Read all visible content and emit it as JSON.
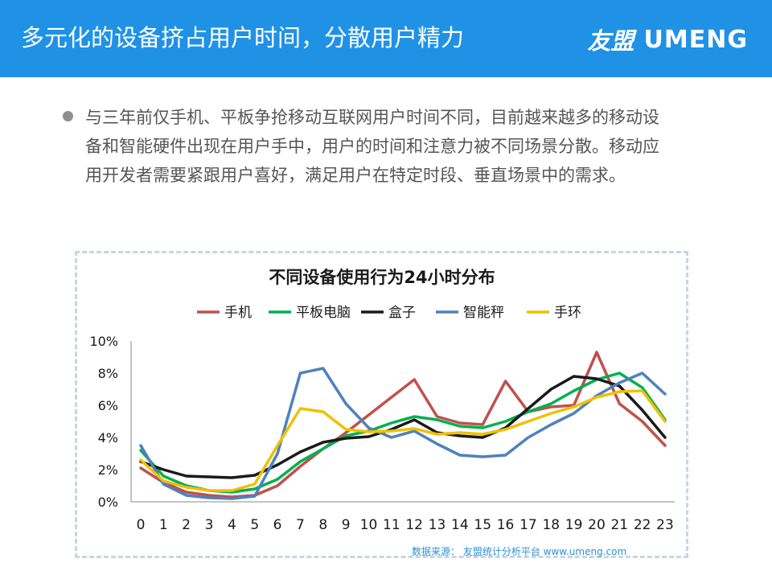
{
  "header": {
    "title": "多元化的设备挤占用户时间，分散用户精力",
    "logo_cn": "友盟",
    "logo_en": "UMENG"
  },
  "bullet": {
    "text": "与三年前仅手机、平板争抢移动互联网用户时间不同，目前越来越多的移动设备和智能硬件出现在用户手中，用户的时间和注意力被不同场景分散。移动应用开发者需要紧跟用户喜好，满足用户在特定时段、垂直场景中的需求。"
  },
  "footer": {
    "source": "数据来源： 友盟统计分析平台 www.umeng.com"
  },
  "chart_data": {
    "type": "line",
    "title": "不同设备使用行为24小时分布",
    "x": [
      0,
      1,
      2,
      3,
      4,
      5,
      6,
      7,
      8,
      9,
      10,
      11,
      12,
      13,
      14,
      15,
      16,
      17,
      18,
      19,
      20,
      21,
      22,
      23
    ],
    "x_tick_labels": [
      "0",
      "1",
      "2",
      "3",
      "4",
      "5",
      "6",
      "7",
      "8",
      "9",
      "10",
      "11",
      "12",
      "13",
      "14",
      "15",
      "16",
      "17",
      "18",
      "19",
      "20",
      "21",
      "22",
      "23"
    ],
    "ylim": [
      0,
      10
    ],
    "y_ticks": [
      0,
      2,
      4,
      6,
      8,
      10
    ],
    "y_tick_labels": [
      "0%",
      "2%",
      "4%",
      "6%",
      "8%",
      "10%"
    ],
    "legend_position": "top",
    "grid": false,
    "series": [
      {
        "name": "手机",
        "color": "#c0504d",
        "values": [
          2.1,
          1.2,
          0.6,
          0.4,
          0.3,
          0.4,
          1.0,
          2.2,
          3.3,
          4.3,
          5.4,
          6.5,
          7.6,
          5.3,
          4.9,
          4.8,
          7.5,
          5.6,
          5.9,
          6.0,
          9.3,
          6.1,
          5.0,
          3.5
        ]
      },
      {
        "name": "平板电脑",
        "color": "#00b050",
        "values": [
          3.2,
          1.6,
          1.0,
          0.7,
          0.6,
          0.8,
          1.4,
          2.5,
          3.3,
          4.1,
          4.4,
          4.9,
          5.3,
          5.1,
          4.7,
          4.6,
          5.0,
          5.6,
          6.1,
          6.9,
          7.6,
          8.0,
          7.1,
          5.1
        ]
      },
      {
        "name": "盒子",
        "color": "#1a1a1a",
        "values": [
          2.5,
          2.0,
          1.6,
          1.55,
          1.5,
          1.65,
          2.3,
          3.1,
          3.7,
          3.95,
          4.05,
          4.5,
          5.1,
          4.3,
          4.1,
          4.0,
          4.6,
          5.8,
          7.0,
          7.8,
          7.65,
          7.2,
          5.7,
          4.0
        ]
      },
      {
        "name": "智能秤",
        "color": "#4f81bd",
        "values": [
          3.5,
          1.1,
          0.4,
          0.25,
          0.2,
          0.35,
          3.0,
          8.0,
          8.3,
          6.1,
          4.6,
          4.0,
          4.4,
          3.6,
          2.9,
          2.8,
          2.9,
          4.0,
          4.8,
          5.5,
          6.6,
          7.4,
          8.0,
          6.7
        ]
      },
      {
        "name": "手环",
        "color": "#f0c000",
        "values": [
          2.6,
          1.3,
          0.9,
          0.7,
          0.7,
          1.1,
          3.5,
          5.8,
          5.6,
          4.5,
          4.35,
          4.4,
          4.55,
          4.2,
          4.3,
          4.2,
          4.5,
          5.0,
          5.5,
          5.9,
          6.5,
          6.85,
          6.9,
          5.0
        ]
      }
    ]
  }
}
